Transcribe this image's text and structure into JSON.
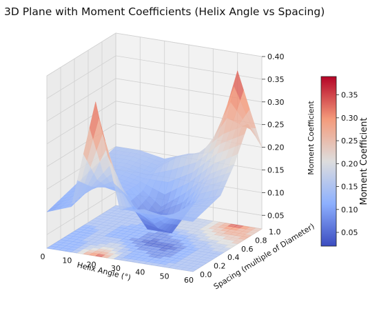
{
  "chart_data": {
    "type": "surface3d",
    "title": "3D Plane with Moment Coefficients (Helix Angle vs Spacing)",
    "xlabel": "Helix Angle (°)",
    "ylabel": "Spacing (multiple of Diameter)",
    "zlabel": "Moment Coefficient",
    "colorbar_label": "Moment Coefficient",
    "colormap": "coolwarm",
    "grid": true,
    "contour_projection": "floor",
    "xlim": [
      0,
      60
    ],
    "ylim": [
      0,
      1.0
    ],
    "zlim": [
      0.02,
      0.4
    ],
    "x_ticks": [
      "0",
      "10",
      "20",
      "30",
      "40",
      "50",
      "60"
    ],
    "y_ticks": [
      "0.0",
      "0.2",
      "0.4",
      "0.6",
      "0.8",
      "1.0"
    ],
    "z_ticks": [
      "0.05",
      "0.10",
      "0.15",
      "0.20",
      "0.25",
      "0.30",
      "0.35",
      "0.40"
    ],
    "colorbar_ticks": [
      "0.05",
      "0.10",
      "0.15",
      "0.20",
      "0.25",
      "0.30",
      "0.35"
    ],
    "colorbar_range": [
      0.02,
      0.39
    ],
    "grid_x": [
      0,
      10,
      20,
      30,
      40,
      50,
      60
    ],
    "grid_y": [
      0.0,
      0.2,
      0.4,
      0.6,
      0.8,
      1.0
    ],
    "z": [
      [
        0.1,
        0.12,
        0.36,
        0.13,
        0.14,
        0.13,
        0.13
      ],
      [
        0.11,
        0.13,
        0.2,
        0.12,
        0.08,
        0.13,
        0.14
      ],
      [
        0.12,
        0.13,
        0.12,
        0.05,
        0.05,
        0.13,
        0.15
      ],
      [
        0.13,
        0.13,
        0.12,
        0.08,
        0.12,
        0.17,
        0.2
      ],
      [
        0.14,
        0.14,
        0.13,
        0.17,
        0.19,
        0.24,
        0.27
      ],
      [
        0.15,
        0.15,
        0.14,
        0.16,
        0.17,
        0.36,
        0.2
      ]
    ]
  }
}
